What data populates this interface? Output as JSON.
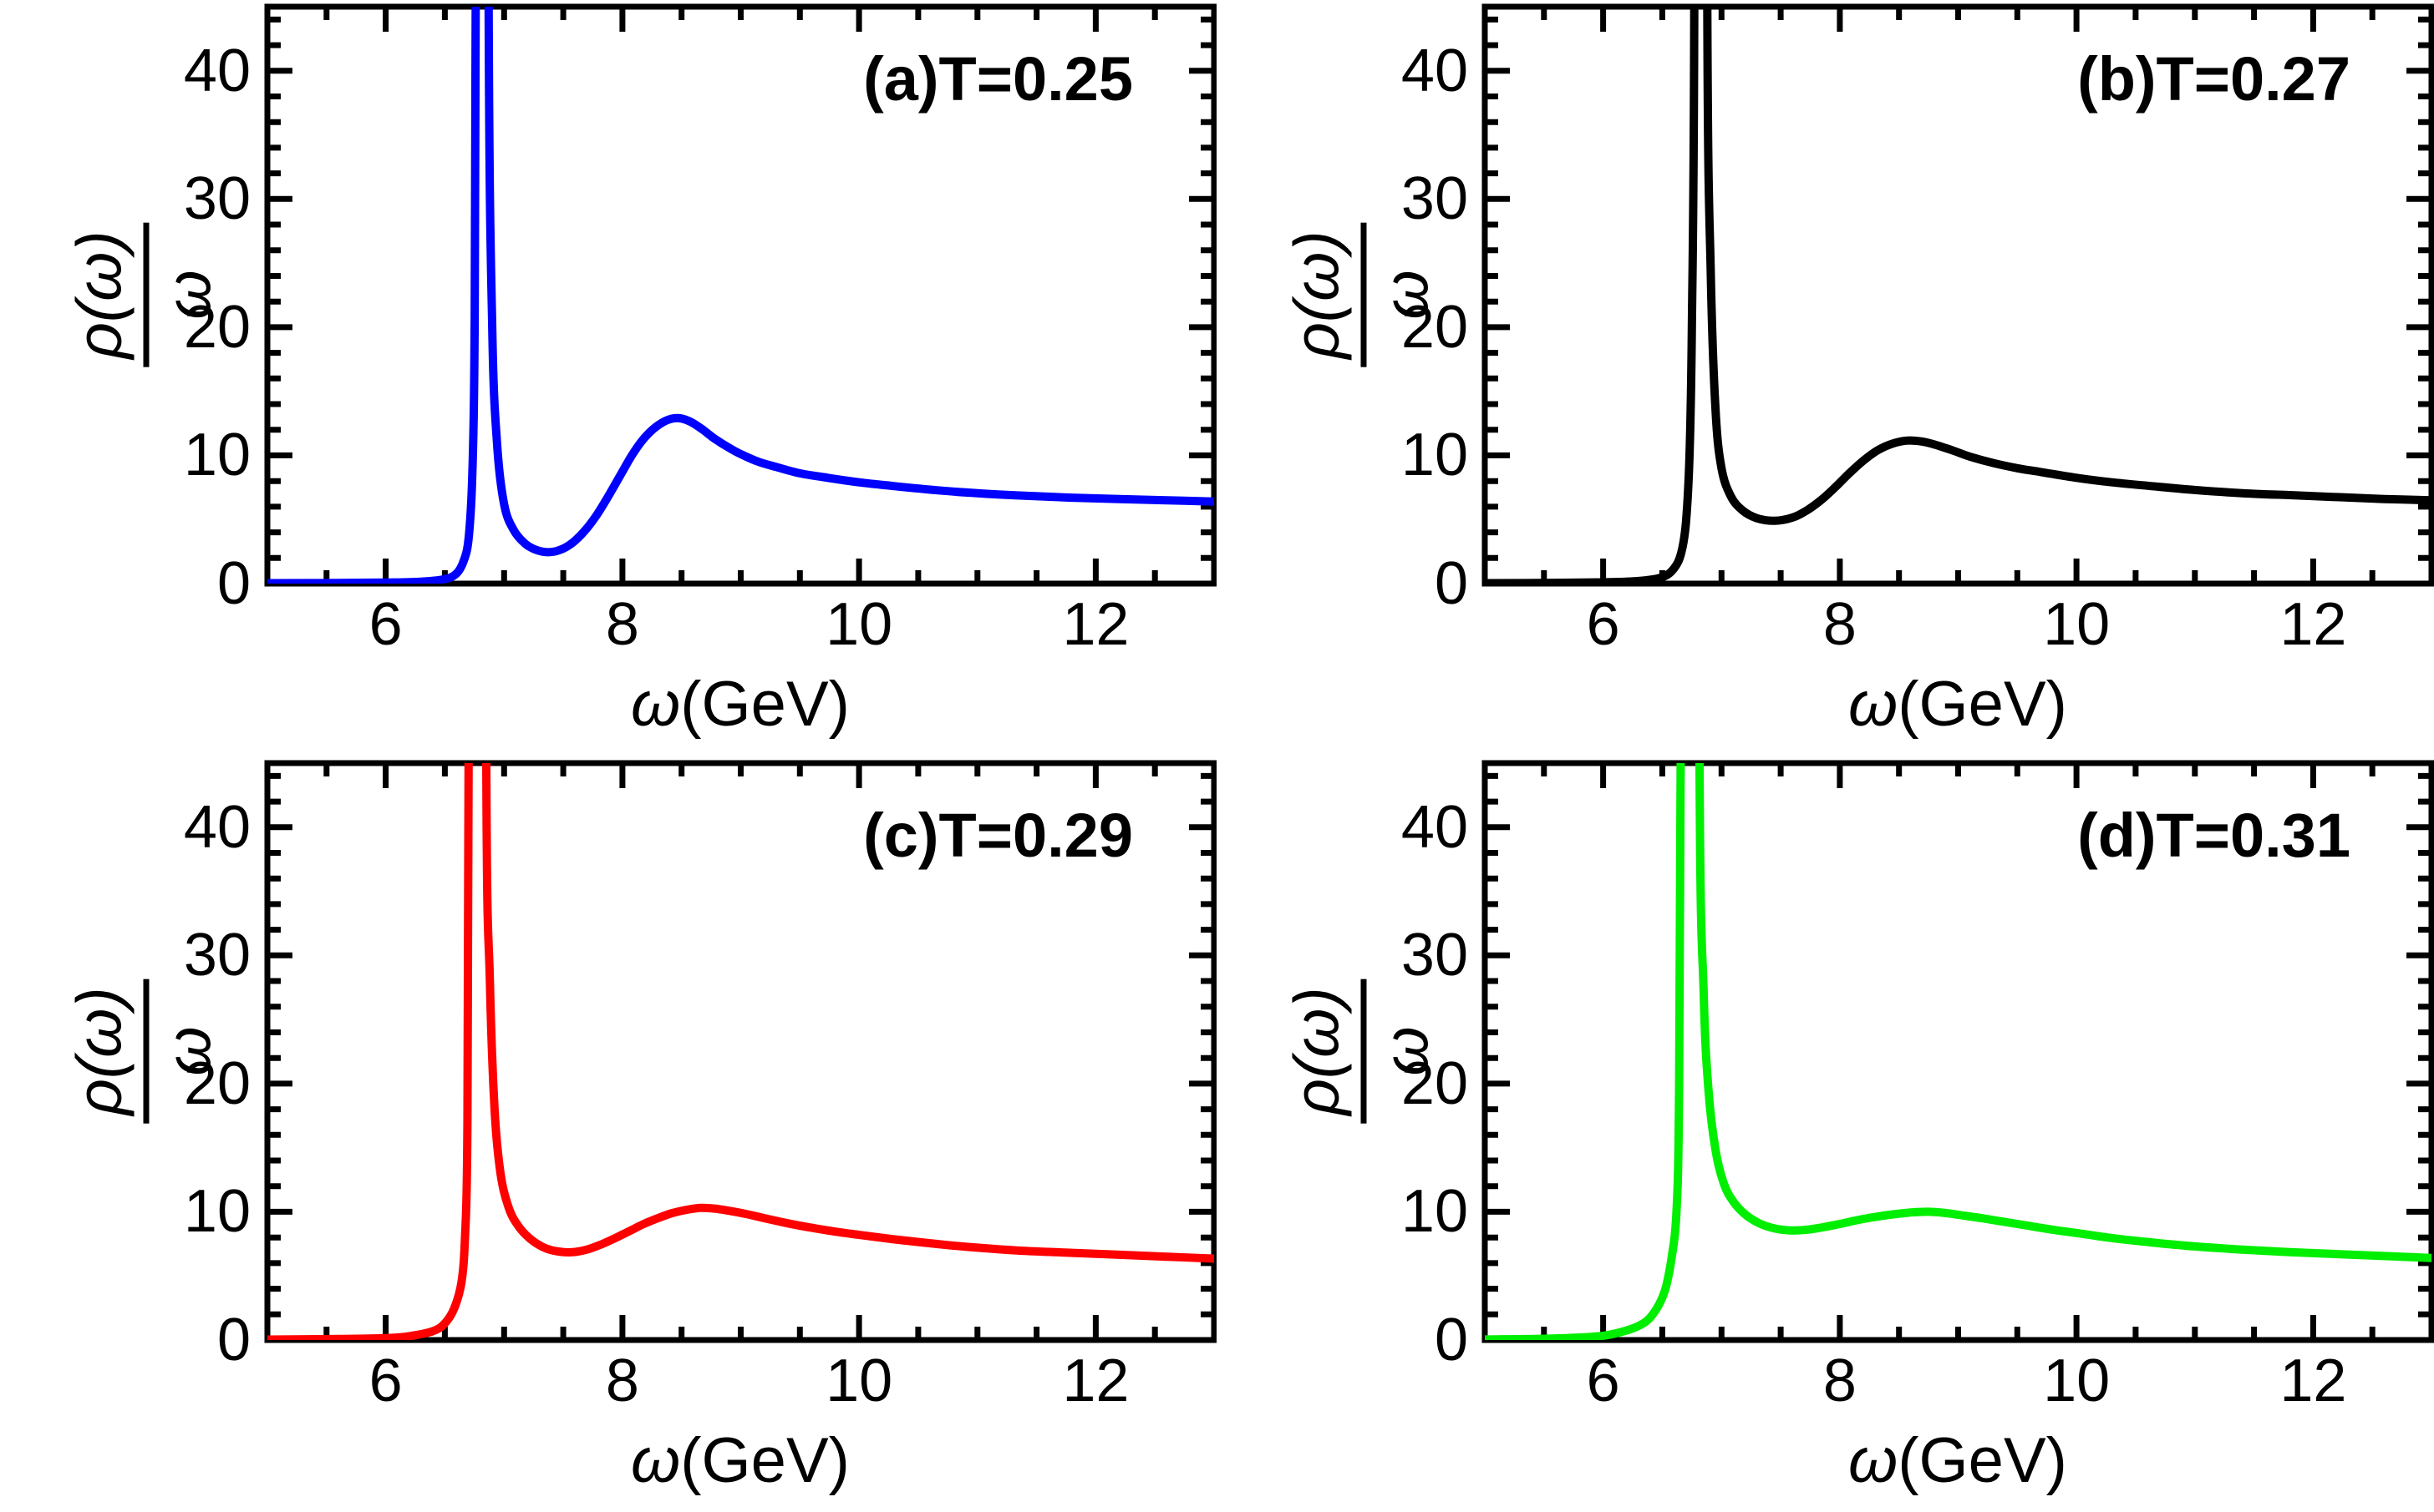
{
  "figure": {
    "background": "#ffffff",
    "frame_color": "#000000",
    "description": "Spectral function rho(omega)/omega versus omega in GeV at four temperatures"
  },
  "chart_data": [
    {
      "type": "line",
      "panel": "a",
      "label": "(a)T=0.25",
      "temperature": "0.25",
      "color": "#0000ff",
      "xlabel": {
        "symbol": "ω",
        "units": "(GeV)"
      },
      "ylabel_num": "ρ(ω)",
      "ylabel_den": "ω",
      "xlim": [
        5,
        13
      ],
      "ylim": [
        0,
        45
      ],
      "xticks": [
        6,
        8,
        10,
        12
      ],
      "yticks": [
        0,
        10,
        20,
        30,
        40
      ],
      "x_minor_step": 0.5,
      "y_minor_step": 2,
      "grid": false,
      "series": [
        {
          "name": "T=0.25",
          "points": [
            [
              5,
              0.03
            ],
            [
              5.6,
              0.05
            ],
            [
              6.0,
              0.08
            ],
            [
              6.3,
              0.15
            ],
            [
              6.5,
              0.35
            ],
            [
              6.6,
              0.8
            ],
            [
              6.66,
              1.8
            ],
            [
              6.7,
              3.5
            ],
            [
              6.73,
              8
            ],
            [
              6.75,
              18
            ],
            [
              6.76,
              45
            ],
            [
              6.77,
              120
            ],
            [
              6.86,
              120
            ],
            [
              6.87,
              45
            ],
            [
              6.9,
              20
            ],
            [
              6.94,
              11
            ],
            [
              7.0,
              6.2
            ],
            [
              7.08,
              4.2
            ],
            [
              7.18,
              3.1
            ],
            [
              7.28,
              2.6
            ],
            [
              7.38,
              2.45
            ],
            [
              7.48,
              2.65
            ],
            [
              7.58,
              3.2
            ],
            [
              7.68,
              4.1
            ],
            [
              7.78,
              5.3
            ],
            [
              7.88,
              6.8
            ],
            [
              7.98,
              8.4
            ],
            [
              8.08,
              10.0
            ],
            [
              8.18,
              11.3
            ],
            [
              8.28,
              12.2
            ],
            [
              8.38,
              12.75
            ],
            [
              8.48,
              12.9
            ],
            [
              8.58,
              12.6
            ],
            [
              8.68,
              12.0
            ],
            [
              8.78,
              11.3
            ],
            [
              8.9,
              10.6
            ],
            [
              9.0,
              10.1
            ],
            [
              9.15,
              9.5
            ],
            [
              9.3,
              9.1
            ],
            [
              9.5,
              8.6
            ],
            [
              9.7,
              8.3
            ],
            [
              10.0,
              7.9
            ],
            [
              10.3,
              7.6
            ],
            [
              10.7,
              7.25
            ],
            [
              11.0,
              7.05
            ],
            [
              11.4,
              6.85
            ],
            [
              11.8,
              6.7
            ],
            [
              12.2,
              6.6
            ],
            [
              12.6,
              6.5
            ],
            [
              13,
              6.4
            ]
          ]
        }
      ]
    },
    {
      "type": "line",
      "panel": "b",
      "label": "(b)T=0.27",
      "temperature": "0.27",
      "color": "#000000",
      "xlabel": {
        "symbol": "ω",
        "units": "(GeV)"
      },
      "ylabel_num": "ρ(ω)",
      "ylabel_den": "ω",
      "xlim": [
        5,
        13
      ],
      "ylim": [
        0,
        45
      ],
      "xticks": [
        6,
        8,
        10,
        12
      ],
      "yticks": [
        0,
        10,
        20,
        30,
        40
      ],
      "x_minor_step": 0.5,
      "y_minor_step": 2,
      "grid": false,
      "series": [
        {
          "name": "T=0.27",
          "points": [
            [
              5,
              0.03
            ],
            [
              5.6,
              0.06
            ],
            [
              6.0,
              0.1
            ],
            [
              6.3,
              0.2
            ],
            [
              6.5,
              0.5
            ],
            [
              6.6,
              1.2
            ],
            [
              6.66,
              2.4
            ],
            [
              6.7,
              4.8
            ],
            [
              6.73,
              10
            ],
            [
              6.75,
              20
            ],
            [
              6.77,
              45
            ],
            [
              6.78,
              120
            ],
            [
              6.87,
              120
            ],
            [
              6.88,
              45
            ],
            [
              6.91,
              24
            ],
            [
              6.95,
              13.5
            ],
            [
              7.0,
              9.0
            ],
            [
              7.08,
              6.8
            ],
            [
              7.18,
              5.7
            ],
            [
              7.3,
              5.1
            ],
            [
              7.45,
              4.9
            ],
            [
              7.6,
              5.15
            ],
            [
              7.72,
              5.7
            ],
            [
              7.84,
              6.5
            ],
            [
              7.96,
              7.5
            ],
            [
              8.08,
              8.6
            ],
            [
              8.2,
              9.6
            ],
            [
              8.32,
              10.4
            ],
            [
              8.44,
              10.9
            ],
            [
              8.56,
              11.15
            ],
            [
              8.68,
              11.1
            ],
            [
              8.8,
              10.85
            ],
            [
              8.95,
              10.4
            ],
            [
              9.1,
              9.9
            ],
            [
              9.3,
              9.4
            ],
            [
              9.5,
              9.0
            ],
            [
              9.7,
              8.7
            ],
            [
              10.0,
              8.25
            ],
            [
              10.3,
              7.9
            ],
            [
              10.7,
              7.55
            ],
            [
              11.0,
              7.3
            ],
            [
              11.4,
              7.05
            ],
            [
              11.8,
              6.9
            ],
            [
              12.2,
              6.75
            ],
            [
              12.6,
              6.6
            ],
            [
              13,
              6.5
            ]
          ]
        }
      ]
    },
    {
      "type": "line",
      "panel": "c",
      "label": "(c)T=0.29",
      "temperature": "0.29",
      "color": "#ff0000",
      "xlabel": {
        "symbol": "ω",
        "units": "(GeV)"
      },
      "ylabel_num": "ρ(ω)",
      "ylabel_den": "ω",
      "xlim": [
        5,
        13
      ],
      "ylim": [
        0,
        45
      ],
      "xticks": [
        6,
        8,
        10,
        12
      ],
      "yticks": [
        0,
        10,
        20,
        30,
        40
      ],
      "x_minor_step": 0.5,
      "y_minor_step": 2,
      "grid": false,
      "series": [
        {
          "name": "T=0.29",
          "points": [
            [
              5,
              0.03
            ],
            [
              5.6,
              0.08
            ],
            [
              6.0,
              0.15
            ],
            [
              6.2,
              0.3
            ],
            [
              6.4,
              0.7
            ],
            [
              6.5,
              1.3
            ],
            [
              6.58,
              2.5
            ],
            [
              6.64,
              4.5
            ],
            [
              6.67,
              8
            ],
            [
              6.69,
              16
            ],
            [
              6.7,
              45
            ],
            [
              6.71,
              120
            ],
            [
              6.84,
              120
            ],
            [
              6.85,
              45
            ],
            [
              6.88,
              28
            ],
            [
              6.92,
              18
            ],
            [
              6.97,
              13
            ],
            [
              7.04,
              10.3
            ],
            [
              7.12,
              8.9
            ],
            [
              7.22,
              7.9
            ],
            [
              7.34,
              7.2
            ],
            [
              7.46,
              6.9
            ],
            [
              7.58,
              6.85
            ],
            [
              7.7,
              7.05
            ],
            [
              7.82,
              7.45
            ],
            [
              7.94,
              7.95
            ],
            [
              8.06,
              8.5
            ],
            [
              8.18,
              9.05
            ],
            [
              8.3,
              9.5
            ],
            [
              8.42,
              9.9
            ],
            [
              8.54,
              10.15
            ],
            [
              8.66,
              10.3
            ],
            [
              8.78,
              10.25
            ],
            [
              8.92,
              10.05
            ],
            [
              9.06,
              9.8
            ],
            [
              9.2,
              9.5
            ],
            [
              9.4,
              9.1
            ],
            [
              9.6,
              8.75
            ],
            [
              9.8,
              8.45
            ],
            [
              10.0,
              8.2
            ],
            [
              10.3,
              7.85
            ],
            [
              10.7,
              7.45
            ],
            [
              11.0,
              7.2
            ],
            [
              11.4,
              6.95
            ],
            [
              11.8,
              6.8
            ],
            [
              12.2,
              6.65
            ],
            [
              12.6,
              6.5
            ],
            [
              13,
              6.35
            ]
          ]
        }
      ]
    },
    {
      "type": "line",
      "panel": "d",
      "label": "(d)T=0.31",
      "temperature": "0.31",
      "color": "#00ee00",
      "xlabel": {
        "symbol": "ω",
        "units": "(GeV)"
      },
      "ylabel_num": "ρ(ω)",
      "ylabel_den": "ω",
      "xlim": [
        5,
        13
      ],
      "ylim": [
        0,
        45
      ],
      "xticks": [
        6,
        8,
        10,
        12
      ],
      "yticks": [
        0,
        10,
        20,
        30,
        40
      ],
      "x_minor_step": 0.5,
      "y_minor_step": 2,
      "grid": false,
      "series": [
        {
          "name": "T=0.31",
          "points": [
            [
              5,
              0.04
            ],
            [
              5.5,
              0.1
            ],
            [
              5.9,
              0.25
            ],
            [
              6.1,
              0.5
            ],
            [
              6.3,
              1.1
            ],
            [
              6.42,
              2.0
            ],
            [
              6.52,
              3.8
            ],
            [
              6.58,
              6.5
            ],
            [
              6.62,
              10
            ],
            [
              6.64,
              18
            ],
            [
              6.655,
              45
            ],
            [
              6.665,
              120
            ],
            [
              6.8,
              120
            ],
            [
              6.815,
              45
            ],
            [
              6.85,
              27
            ],
            [
              6.89,
              19.5
            ],
            [
              6.95,
              14.8
            ],
            [
              7.02,
              12.2
            ],
            [
              7.1,
              10.8
            ],
            [
              7.2,
              9.8
            ],
            [
              7.32,
              9.1
            ],
            [
              7.45,
              8.7
            ],
            [
              7.58,
              8.55
            ],
            [
              7.72,
              8.6
            ],
            [
              7.86,
              8.8
            ],
            [
              8.0,
              9.05
            ],
            [
              8.15,
              9.35
            ],
            [
              8.3,
              9.6
            ],
            [
              8.45,
              9.8
            ],
            [
              8.6,
              9.95
            ],
            [
              8.75,
              10.0
            ],
            [
              8.9,
              9.9
            ],
            [
              9.05,
              9.7
            ],
            [
              9.2,
              9.5
            ],
            [
              9.4,
              9.2
            ],
            [
              9.6,
              8.9
            ],
            [
              9.8,
              8.6
            ],
            [
              10.0,
              8.35
            ],
            [
              10.3,
              7.95
            ],
            [
              10.7,
              7.55
            ],
            [
              11.0,
              7.3
            ],
            [
              11.4,
              7.05
            ],
            [
              11.8,
              6.85
            ],
            [
              12.2,
              6.7
            ],
            [
              12.6,
              6.55
            ],
            [
              13,
              6.4
            ]
          ]
        }
      ]
    }
  ]
}
